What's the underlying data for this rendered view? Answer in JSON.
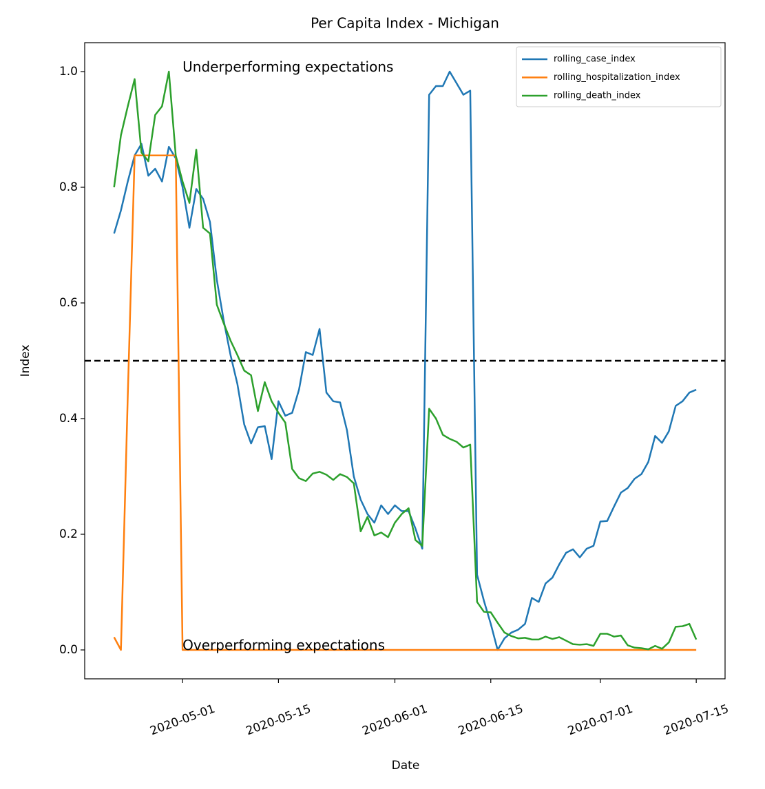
{
  "chart_data": {
    "type": "line",
    "title": "Per Capita Index - Michigan",
    "xlabel": "Date",
    "ylabel": "Index",
    "x": [
      "2020-04-21",
      "2020-04-22",
      "2020-04-23",
      "2020-04-24",
      "2020-04-25",
      "2020-04-26",
      "2020-04-27",
      "2020-04-28",
      "2020-04-29",
      "2020-04-30",
      "2020-05-01",
      "2020-05-02",
      "2020-05-03",
      "2020-05-04",
      "2020-05-05",
      "2020-05-06",
      "2020-05-07",
      "2020-05-08",
      "2020-05-09",
      "2020-05-10",
      "2020-05-11",
      "2020-05-12",
      "2020-05-13",
      "2020-05-14",
      "2020-05-15",
      "2020-05-16",
      "2020-05-17",
      "2020-05-18",
      "2020-05-19",
      "2020-05-20",
      "2020-05-21",
      "2020-05-22",
      "2020-05-23",
      "2020-05-24",
      "2020-05-25",
      "2020-05-26",
      "2020-05-27",
      "2020-05-28",
      "2020-05-29",
      "2020-05-30",
      "2020-05-31",
      "2020-06-01",
      "2020-06-02",
      "2020-06-03",
      "2020-06-04",
      "2020-06-05",
      "2020-06-06",
      "2020-06-07",
      "2020-06-08",
      "2020-06-09",
      "2020-06-10",
      "2020-06-11",
      "2020-06-12",
      "2020-06-13",
      "2020-06-14",
      "2020-06-15",
      "2020-06-16",
      "2020-06-17",
      "2020-06-18",
      "2020-06-19",
      "2020-06-20",
      "2020-06-21",
      "2020-06-22",
      "2020-06-23",
      "2020-06-24",
      "2020-06-25",
      "2020-06-26",
      "2020-06-27",
      "2020-06-28",
      "2020-06-29",
      "2020-06-30",
      "2020-07-01",
      "2020-07-02",
      "2020-07-03",
      "2020-07-04",
      "2020-07-05",
      "2020-07-06",
      "2020-07-07",
      "2020-07-08",
      "2020-07-09",
      "2020-07-10",
      "2020-07-11",
      "2020-07-12",
      "2020-07-13",
      "2020-07-14",
      "2020-07-15"
    ],
    "series": [
      {
        "name": "rolling_case_index",
        "color": "#1f77b4",
        "values": [
          0.72,
          0.76,
          0.81,
          0.855,
          0.875,
          0.82,
          0.832,
          0.81,
          0.87,
          0.85,
          0.8,
          0.73,
          0.797,
          0.78,
          0.74,
          0.64,
          0.57,
          0.51,
          0.46,
          0.39,
          0.357,
          0.385,
          0.387,
          0.33,
          0.43,
          0.405,
          0.41,
          0.45,
          0.515,
          0.51,
          0.555,
          0.445,
          0.43,
          0.428,
          0.38,
          0.3,
          0.26,
          0.235,
          0.22,
          0.25,
          0.235,
          0.25,
          0.24,
          0.24,
          0.21,
          0.175,
          0.96,
          0.975,
          0.975,
          1.0,
          0.98,
          0.96,
          0.967,
          0.13,
          0.085,
          0.045,
          0.0,
          0.02,
          0.03,
          0.035,
          0.045,
          0.09,
          0.083,
          0.115,
          0.125,
          0.148,
          0.168,
          0.174,
          0.16,
          0.175,
          0.18,
          0.222,
          0.223,
          0.248,
          0.272,
          0.28,
          0.296,
          0.304,
          0.325,
          0.37,
          0.358,
          0.378,
          0.422,
          0.43,
          0.445,
          0.45
        ]
      },
      {
        "name": "rolling_hospitalization_index",
        "color": "#ff7f0e",
        "values": [
          0.022,
          0,
          0.44,
          0.855,
          0.855,
          0.855,
          0.855,
          0.855,
          0.855,
          0.855,
          0,
          0,
          0,
          0,
          0,
          0,
          0,
          0,
          0,
          0,
          0,
          0,
          0,
          0,
          0,
          0,
          0,
          0,
          0,
          0,
          0,
          0,
          0,
          0,
          0,
          0,
          0,
          0,
          0,
          0,
          0,
          0,
          0,
          0,
          0,
          0,
          0,
          0,
          0,
          0,
          0,
          0,
          0,
          0,
          0,
          0,
          0,
          0,
          0,
          0,
          0,
          0,
          0,
          0,
          0,
          0,
          0,
          0,
          0,
          0,
          0,
          0,
          0,
          0,
          0,
          0,
          0,
          0,
          0,
          0,
          0,
          0,
          0,
          0,
          0,
          0
        ]
      },
      {
        "name": "rolling_death_index",
        "color": "#2ca02c",
        "values": [
          0.8,
          0.89,
          0.94,
          0.987,
          0.86,
          0.845,
          0.925,
          0.94,
          1.0,
          0.855,
          0.81,
          0.773,
          0.865,
          0.73,
          0.72,
          0.597,
          0.565,
          0.535,
          0.51,
          0.483,
          0.475,
          0.413,
          0.463,
          0.43,
          0.41,
          0.393,
          0.313,
          0.297,
          0.292,
          0.305,
          0.308,
          0.303,
          0.294,
          0.304,
          0.299,
          0.288,
          0.205,
          0.23,
          0.198,
          0.203,
          0.195,
          0.22,
          0.235,
          0.245,
          0.19,
          0.18,
          0.417,
          0.4,
          0.372,
          0.365,
          0.36,
          0.35,
          0.355,
          0.083,
          0.066,
          0.065,
          0.047,
          0.03,
          0.024,
          0.02,
          0.021,
          0.018,
          0.018,
          0.023,
          0.019,
          0.022,
          0.016,
          0.01,
          0.009,
          0.01,
          0.007,
          0.028,
          0.028,
          0.023,
          0.025,
          0.008,
          0.004,
          0.003,
          0.001,
          0.007,
          0.002,
          0.013,
          0.04,
          0.041,
          0.045,
          0.018
        ]
      }
    ],
    "xlim": [
      "2020-04-16T17:00Z",
      "2020-07-19T05:00Z"
    ],
    "ylim": [
      -0.05,
      1.05
    ],
    "xticks": [
      "2020-05-01",
      "2020-05-15",
      "2020-06-01",
      "2020-06-15",
      "2020-07-01",
      "2020-07-15"
    ],
    "yticks": [
      {
        "value": 0,
        "label": "0.0"
      },
      0.2,
      0.4,
      0.6,
      0.8,
      {
        "value": 1,
        "label": "1.0"
      }
    ],
    "reference_line": {
      "value": 0.5,
      "color": "#000000",
      "dashed": true
    },
    "annotations": [
      {
        "text": "Underperforming expectations",
        "x": "2020-05-01",
        "y": 1.0
      },
      {
        "text": "Overperforming expectations",
        "x": "2020-05-01",
        "y": 0.0
      }
    ],
    "legend": "upper right",
    "grid": false
  }
}
